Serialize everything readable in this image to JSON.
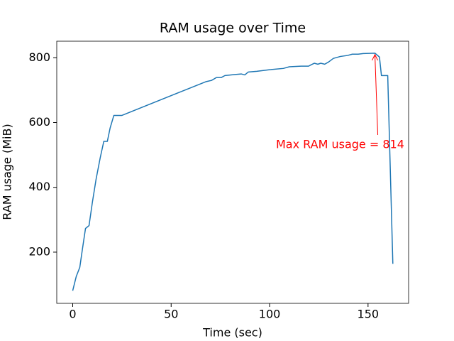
{
  "chart_data": {
    "type": "line",
    "title": "RAM usage over Time",
    "x_label": "Time (sec)",
    "y_label": "RAM usage (MiB)",
    "x": [
      0,
      1.8,
      3.6,
      5,
      6.5,
      8.3,
      10,
      11.9,
      14,
      15.8,
      17.6,
      19,
      20.9,
      25,
      67.6,
      70.5,
      73,
      75.5,
      77.3,
      82,
      85.6,
      87.4,
      89.2,
      93.5,
      100,
      107,
      110,
      116,
      119.8,
      121,
      122.7,
      124.5,
      126,
      128,
      130,
      132.4,
      136,
      139.6,
      142,
      145,
      147.5,
      153.5,
      155.8,
      156.8,
      160,
      162.6
    ],
    "series": [
      {
        "name": "RAM usage",
        "color": "#1f77b4",
        "values": [
          81,
          125,
          153,
          212,
          273,
          282,
          354,
          426,
          492,
          542,
          542,
          583,
          622,
          622,
          726,
          730,
          739,
          739,
          745,
          748,
          750,
          747,
          756,
          758,
          763,
          767,
          772,
          774,
          774,
          778,
          783,
          780,
          783,
          780,
          787,
          798,
          804,
          807,
          811,
          811,
          813,
          814,
          802,
          745,
          745,
          164
        ]
      }
    ],
    "xlim": [
      -8.1,
      170.6
    ],
    "ylim": [
      42,
      851
    ],
    "xticks": [
      0,
      50,
      100,
      150
    ],
    "yticks": [
      200,
      400,
      600,
      800
    ],
    "grid": false,
    "annotation": {
      "text": "Max RAM usage = 814",
      "color": "#ff0000"
    }
  }
}
